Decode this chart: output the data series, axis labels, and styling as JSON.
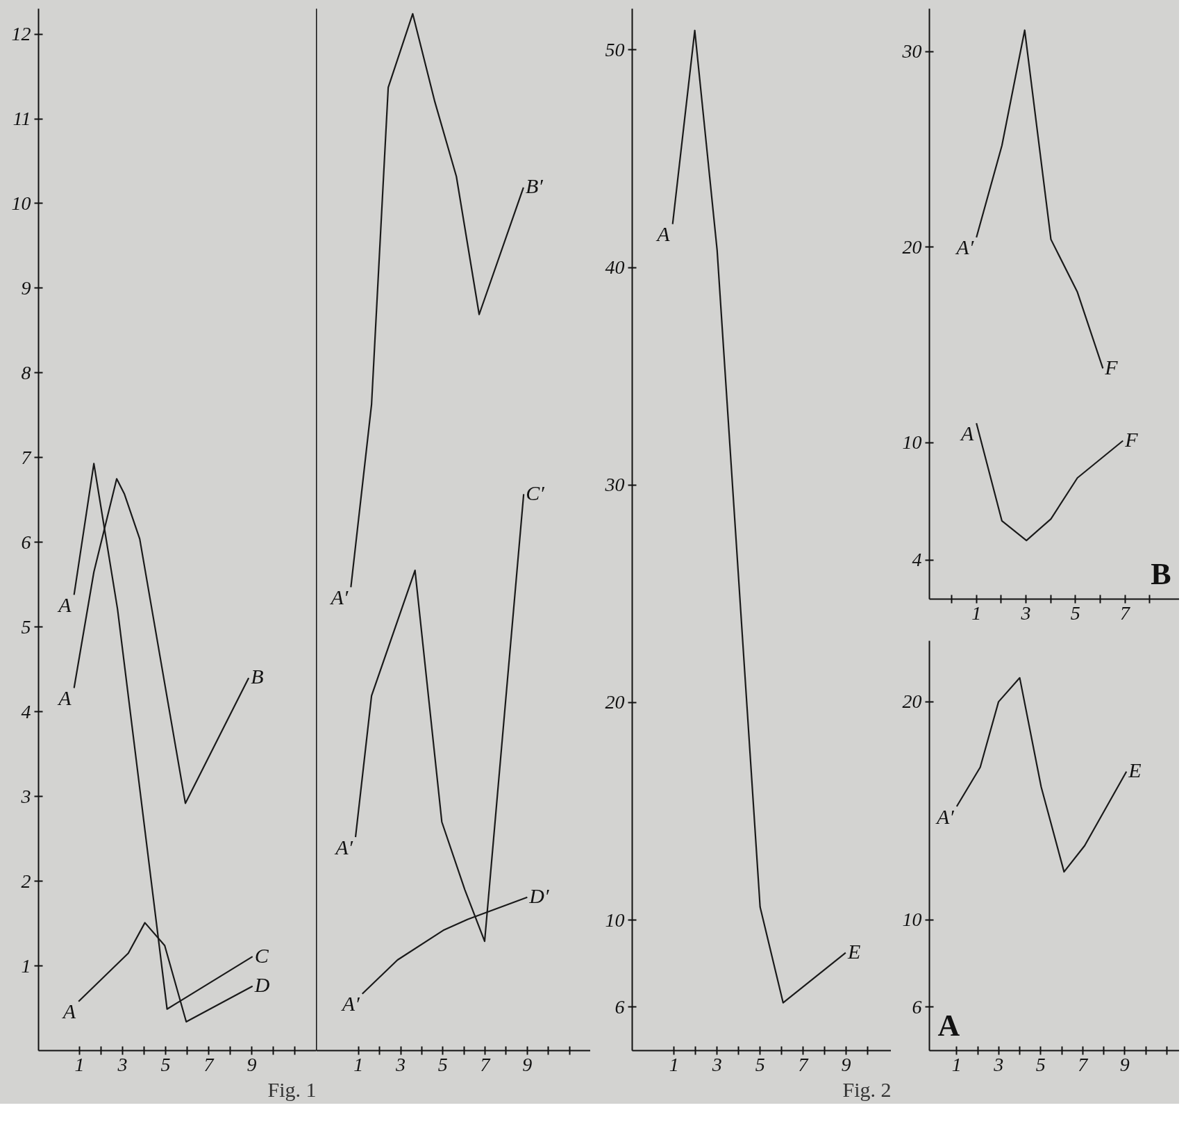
{
  "chart_data": [
    {
      "type": "line",
      "xlim": [
        -0.9,
        12
      ],
      "ylim": [
        0,
        12.3
      ],
      "xticks": [
        1,
        {
          "value": 2,
          "label": null
        },
        3,
        {
          "value": 4,
          "label": null
        },
        5,
        {
          "value": 6,
          "label": null
        },
        7,
        {
          "value": 8,
          "label": null
        },
        9,
        {
          "value": 10,
          "label": null
        },
        {
          "value": 11,
          "label": null
        }
      ],
      "yticks": [
        1,
        2,
        3,
        4,
        5,
        6,
        7,
        8,
        9,
        10,
        11,
        12
      ],
      "grid": false,
      "legend": false,
      "series": [
        {
          "name": "B",
          "color": "#1a1a1a",
          "x": [
            0.75,
            1.67,
            2.73,
            3.09,
            3.8,
            5.92,
            8.86
          ],
          "values": [
            4.28,
            5.65,
            6.75,
            6.57,
            6.04,
            2.92,
            4.4
          ]
        },
        {
          "name": "C",
          "color": "#1a1a1a",
          "x": [
            0.75,
            1.67,
            2.77,
            5.07,
            9.04
          ],
          "values": [
            5.38,
            6.93,
            5.21,
            0.49,
            1.11
          ]
        },
        {
          "name": "D",
          "color": "#1a1a1a",
          "x": [
            0.96,
            3.27,
            4.04,
            4.96,
            5.96,
            9.04
          ],
          "values": [
            0.58,
            1.15,
            1.51,
            1.24,
            0.34,
            0.76
          ]
        }
      ],
      "annotations": [
        {
          "text": "A",
          "x": 0.75,
          "y": 5.38
        },
        {
          "text": "A",
          "x": 0.75,
          "y": 4.28
        },
        {
          "text": "A",
          "x": 0.96,
          "y": 0.58
        },
        "Fig. 1"
      ]
    },
    {
      "type": "line",
      "xlim": [
        -1,
        12
      ],
      "ylim": [
        0,
        12.3
      ],
      "xticks": [
        1,
        {
          "value": 2,
          "label": null
        },
        3,
        {
          "value": 4,
          "label": null
        },
        5,
        {
          "value": 6,
          "label": null
        },
        7,
        {
          "value": 8,
          "label": null
        },
        9,
        {
          "value": 10,
          "label": null
        },
        {
          "value": 11,
          "label": null
        }
      ],
      "tick_labels": "x",
      "grid": false,
      "legend": false,
      "series": [
        {
          "name": "B′",
          "color": "#1a1a1a",
          "x": [
            0.64,
            1.62,
            2.41,
            3.57,
            4.62,
            5.64,
            6.72,
            8.82
          ],
          "values": [
            5.47,
            7.63,
            11.37,
            12.24,
            11.2,
            10.32,
            8.69,
            10.19
          ]
        },
        {
          "name": "C′",
          "color": "#1a1a1a",
          "x": [
            0.86,
            1.62,
            3.68,
            4.95,
            6.04,
            6.98,
            8.83
          ],
          "values": [
            2.52,
            4.19,
            5.67,
            2.7,
            1.9,
            1.29,
            6.57
          ]
        },
        {
          "name": "D′",
          "color": "#1a1a1a",
          "x": [
            1.18,
            2.85,
            5.02,
            6.18,
            9.0
          ],
          "values": [
            0.67,
            1.07,
            1.42,
            1.55,
            1.81
          ]
        }
      ],
      "annotations": [
        {
          "text": "A′",
          "x": 0.64,
          "y": 5.47
        },
        {
          "text": "A′",
          "x": 0.86,
          "y": 2.52
        },
        {
          "text": "A′",
          "x": 1.18,
          "y": 0.67
        }
      ]
    },
    {
      "type": "line",
      "xlim": [
        -0.95,
        11.1
      ],
      "ylim": [
        4,
        51.9
      ],
      "xticks": [
        1,
        {
          "value": 2,
          "label": null
        },
        3,
        {
          "value": 4,
          "label": null
        },
        5,
        {
          "value": 6,
          "label": null
        },
        7,
        {
          "value": 8,
          "label": null
        },
        9,
        {
          "value": 10,
          "label": null
        }
      ],
      "yticks": [
        6,
        10,
        20,
        30,
        40,
        50
      ],
      "grid": false,
      "legend": false,
      "series": [
        {
          "name": "E",
          "color": "#1a1a1a",
          "x": [
            0.93,
            1.96,
            3.0,
            5.0,
            6.07,
            8.98
          ],
          "values": [
            42.0,
            50.9,
            40.8,
            10.6,
            6.2,
            8.5
          ]
        }
      ],
      "annotations": [
        {
          "text": "A",
          "x": 0.93,
          "y": 42.0
        },
        "Fig. 2"
      ]
    },
    {
      "type": "line",
      "xlim": [
        -0.9,
        9.2
      ],
      "ylim": [
        2,
        32.2
      ],
      "xticks": [
        {
          "value": 0,
          "label": null
        },
        1,
        {
          "value": 2,
          "label": null
        },
        3,
        {
          "value": 4,
          "label": null
        },
        5,
        {
          "value": 6,
          "label": null
        },
        7,
        {
          "value": 8,
          "label": null
        }
      ],
      "yticks": [
        4,
        10,
        20,
        30
      ],
      "grid": false,
      "legend": false,
      "series": [
        {
          "name": "F",
          "color": "#1a1a1a",
          "x": [
            1.0,
            2.03,
            2.95,
            4.01,
            5.08,
            6.11
          ],
          "values": [
            20.5,
            25.2,
            31.1,
            20.4,
            17.7,
            13.8
          ]
        },
        {
          "name": "F",
          "color": "#1a1a1a",
          "x": [
            1.0,
            2.03,
            3.02,
            4.01,
            5.08,
            6.92
          ],
          "values": [
            11.0,
            6.0,
            5.0,
            6.1,
            8.2,
            10.1
          ]
        }
      ],
      "annotations": [
        {
          "text": "A′",
          "x": 1.0,
          "y": 20.5
        },
        {
          "text": "A",
          "x": 1.0,
          "y": 11.0
        },
        "B"
      ]
    },
    {
      "type": "line",
      "xlim": [
        -0.3,
        11.6
      ],
      "ylim": [
        4,
        22.8
      ],
      "xticks": [
        1,
        {
          "value": 2,
          "label": null
        },
        3,
        {
          "value": 4,
          "label": null
        },
        5,
        {
          "value": 6,
          "label": null
        },
        7,
        {
          "value": 8,
          "label": null
        },
        9,
        {
          "value": 10,
          "label": null
        },
        {
          "value": 11,
          "label": null
        }
      ],
      "yticks": [
        6,
        10,
        20
      ],
      "grid": false,
      "legend": false,
      "series": [
        {
          "name": "E",
          "color": "#1a1a1a",
          "x": [
            1.0,
            2.12,
            2.99,
            4.0,
            5.02,
            6.11,
            7.09,
            9.08
          ],
          "values": [
            15.2,
            17.0,
            20.0,
            21.1,
            16.1,
            12.2,
            13.4,
            16.8
          ]
        }
      ],
      "annotations": [
        {
          "text": "A′",
          "x": 1.0,
          "y": 15.2
        },
        "A"
      ]
    }
  ]
}
